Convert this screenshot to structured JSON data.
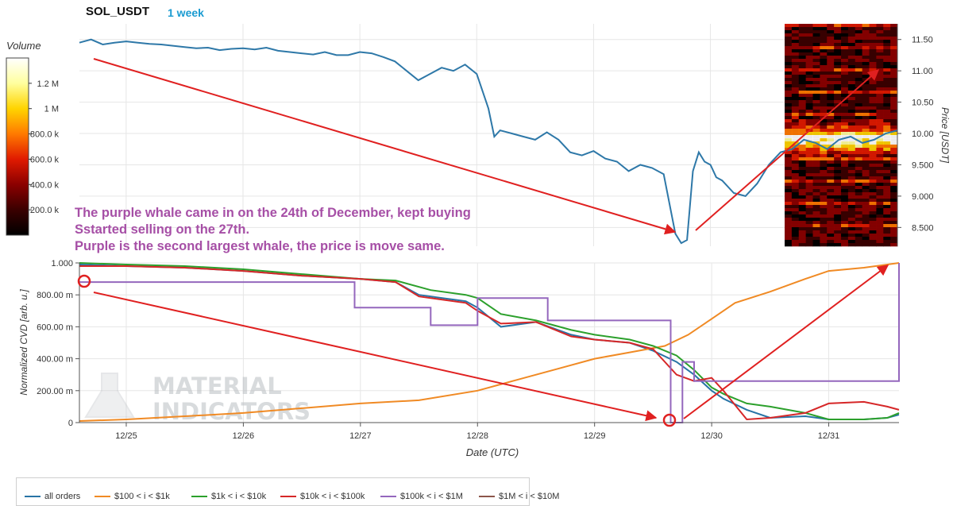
{
  "header": {
    "symbol": "SOL_USDT",
    "period": "1 week"
  },
  "annotation": {
    "lines": [
      "The purple whale came in on the 24th of December, kept buying",
      "Sstarted selling on the 27th.",
      "Purple is the second largest whale, the price is move same."
    ]
  },
  "volume_scale": {
    "title": "Volume",
    "ticks": [
      {
        "label": "1.2 M",
        "value": 1200000
      },
      {
        "label": "1 M",
        "value": 1000000
      },
      {
        "label": "800.0 k",
        "value": 800000
      },
      {
        "label": "600.0 k",
        "value": 600000
      },
      {
        "label": "400.0 k",
        "value": 400000
      },
      {
        "label": "200.0 k",
        "value": 200000
      }
    ],
    "range": [
      0,
      1400000
    ],
    "colormap": [
      "#000000",
      "#3a0000",
      "#8b0000",
      "#e01a00",
      "#ff7a00",
      "#ffd400",
      "#ffff9e",
      "#ffffff"
    ]
  },
  "watermark": {
    "text_line1": "MATERIAL",
    "text_line2": "INDICATORS"
  },
  "colors": {
    "price": "#2e78a8",
    "grid": "#e6e6e6",
    "arrow": "#e02020",
    "circle": "#e02020"
  },
  "chart_data": [
    {
      "type": "line",
      "name": "price",
      "ylabel": "Price [USDT]",
      "yticks": [
        "11.50",
        "11.00",
        "10.50",
        "10.00",
        "9.500",
        "9.000",
        "8.500"
      ],
      "ytick_values": [
        11.5,
        11.0,
        10.5,
        10.0,
        9.5,
        9.0,
        8.5
      ],
      "ylim": [
        8.2,
        11.75
      ],
      "xlim": [
        24.6,
        31.6
      ],
      "x": [
        24.6,
        24.7,
        24.8,
        24.9,
        25.0,
        25.1,
        25.2,
        25.3,
        25.4,
        25.5,
        25.6,
        25.7,
        25.8,
        25.9,
        26.0,
        26.1,
        26.2,
        26.3,
        26.4,
        26.5,
        26.6,
        26.7,
        26.8,
        26.9,
        27.0,
        27.1,
        27.2,
        27.3,
        27.4,
        27.5,
        27.6,
        27.7,
        27.8,
        27.9,
        28.0,
        28.1,
        28.15,
        28.2,
        28.3,
        28.4,
        28.5,
        28.6,
        28.7,
        28.8,
        28.9,
        29.0,
        29.1,
        29.2,
        29.3,
        29.4,
        29.5,
        29.6,
        29.7,
        29.75,
        29.8,
        29.85,
        29.9,
        29.95,
        30.0,
        30.05,
        30.1,
        30.2,
        30.3,
        30.4,
        30.5,
        30.6,
        30.7,
        30.8,
        30.9,
        31.0,
        31.1,
        31.2,
        31.3,
        31.4,
        31.5,
        31.6
      ],
      "y": [
        11.45,
        11.5,
        11.42,
        11.45,
        11.47,
        11.45,
        11.43,
        11.42,
        11.4,
        11.38,
        11.36,
        11.37,
        11.33,
        11.35,
        11.36,
        11.34,
        11.37,
        11.32,
        11.3,
        11.28,
        11.26,
        11.3,
        11.25,
        11.25,
        11.3,
        11.28,
        11.22,
        11.15,
        11.0,
        10.85,
        10.95,
        11.05,
        11.0,
        11.1,
        10.95,
        10.4,
        9.95,
        10.05,
        10.0,
        9.95,
        9.9,
        10.02,
        9.9,
        9.7,
        9.65,
        9.72,
        9.6,
        9.55,
        9.4,
        9.5,
        9.45,
        9.35,
        8.4,
        8.25,
        8.3,
        9.4,
        9.7,
        9.55,
        9.5,
        9.3,
        9.25,
        9.05,
        9.0,
        9.2,
        9.5,
        9.7,
        9.75,
        9.9,
        9.85,
        9.75,
        9.9,
        9.95,
        9.85,
        9.9,
        10.0,
        10.05
      ]
    },
    {
      "type": "line",
      "name": "normalized_cvd",
      "xlabel": "Date (UTC)",
      "ylabel": "Normalized CVD [arb. u.]",
      "yticks": [
        "1.000",
        "800.00 m",
        "600.00 m",
        "400.00 m",
        "200.00 m",
        "0"
      ],
      "ytick_values": [
        1.0,
        0.8,
        0.6,
        0.4,
        0.2,
        0.0
      ],
      "xticks": [
        "12/25",
        "12/26",
        "12/27",
        "12/28",
        "12/29",
        "12/30",
        "12/31"
      ],
      "xtick_values": [
        25,
        26,
        27,
        28,
        29,
        30,
        31
      ],
      "ylim": [
        0,
        1.0
      ],
      "xlim": [
        24.6,
        31.6
      ],
      "series": [
        {
          "name": "all orders",
          "color": "#2874a6",
          "x": [
            24.6,
            25.0,
            25.5,
            26.0,
            26.5,
            27.0,
            27.3,
            27.5,
            27.7,
            27.9,
            28.0,
            28.2,
            28.5,
            28.8,
            29.0,
            29.3,
            29.5,
            29.7,
            29.85,
            30.0,
            30.1,
            30.3,
            30.5,
            30.8,
            31.0,
            31.3,
            31.5,
            31.6
          ],
          "y": [
            0.99,
            0.98,
            0.97,
            0.95,
            0.92,
            0.9,
            0.88,
            0.8,
            0.78,
            0.76,
            0.72,
            0.6,
            0.63,
            0.55,
            0.52,
            0.5,
            0.45,
            0.38,
            0.3,
            0.2,
            0.15,
            0.08,
            0.03,
            0.04,
            0.02,
            0.02,
            0.03,
            0.05
          ]
        },
        {
          "name": "$100 < i < $1k",
          "color": "#f08a24",
          "x": [
            24.6,
            25.0,
            25.5,
            26.0,
            26.5,
            27.0,
            27.5,
            28.0,
            28.3,
            28.7,
            29.0,
            29.3,
            29.6,
            29.8,
            30.0,
            30.2,
            30.5,
            30.8,
            31.0,
            31.3,
            31.6
          ],
          "y": [
            0.01,
            0.02,
            0.04,
            0.06,
            0.09,
            0.12,
            0.14,
            0.2,
            0.26,
            0.34,
            0.4,
            0.44,
            0.48,
            0.55,
            0.65,
            0.75,
            0.82,
            0.9,
            0.95,
            0.97,
            1.0
          ]
        },
        {
          "name": "$1k < i < $10k",
          "color": "#2ca02c",
          "x": [
            24.6,
            25.0,
            25.5,
            26.0,
            26.5,
            27.0,
            27.3,
            27.6,
            27.9,
            28.0,
            28.2,
            28.5,
            28.8,
            29.0,
            29.3,
            29.5,
            29.7,
            29.85,
            30.0,
            30.1,
            30.3,
            30.5,
            30.8,
            31.0,
            31.3,
            31.5,
            31.6
          ],
          "y": [
            1.0,
            0.99,
            0.98,
            0.96,
            0.93,
            0.9,
            0.89,
            0.83,
            0.8,
            0.78,
            0.68,
            0.64,
            0.58,
            0.55,
            0.52,
            0.48,
            0.42,
            0.33,
            0.22,
            0.18,
            0.12,
            0.1,
            0.06,
            0.02,
            0.02,
            0.03,
            0.06
          ]
        },
        {
          "name": "$10k < i < $100k",
          "color": "#d62728",
          "x": [
            24.6,
            25.0,
            25.5,
            26.0,
            26.5,
            27.0,
            27.3,
            27.5,
            27.7,
            27.9,
            28.0,
            28.2,
            28.5,
            28.8,
            29.0,
            29.3,
            29.5,
            29.7,
            29.85,
            30.0,
            30.1,
            30.3,
            30.5,
            30.8,
            31.0,
            31.3,
            31.5,
            31.6
          ],
          "y": [
            0.98,
            0.98,
            0.97,
            0.95,
            0.92,
            0.9,
            0.88,
            0.79,
            0.77,
            0.75,
            0.7,
            0.62,
            0.63,
            0.54,
            0.52,
            0.5,
            0.46,
            0.3,
            0.26,
            0.28,
            0.2,
            0.02,
            0.03,
            0.06,
            0.12,
            0.13,
            0.1,
            0.08
          ]
        },
        {
          "name": "$100k < i < $1M",
          "color": "#9467bd",
          "step": true,
          "x": [
            24.6,
            26.95,
            27.6,
            28.0,
            28.6,
            29.6,
            29.65,
            29.75,
            29.85,
            31.6
          ],
          "y": [
            0.88,
            0.72,
            0.61,
            0.78,
            0.64,
            0.64,
            0.0,
            0.38,
            0.26,
            1.0
          ]
        },
        {
          "name": "$1M < i < $10M",
          "color": "#8c564b",
          "x": [],
          "y": []
        }
      ]
    }
  ],
  "legend": {
    "items": [
      {
        "label": "all orders",
        "color": "#2874a6"
      },
      {
        "label": "$100 < i < $1k",
        "color": "#f08a24"
      },
      {
        "label": "$1k < i < $10k",
        "color": "#2ca02c"
      },
      {
        "label": "$10k < i < $100k",
        "color": "#d62728"
      },
      {
        "label": "$100k < i < $1M",
        "color": "#9467bd"
      },
      {
        "label": "$1M < i < $10M",
        "color": "#8c564b"
      }
    ]
  }
}
